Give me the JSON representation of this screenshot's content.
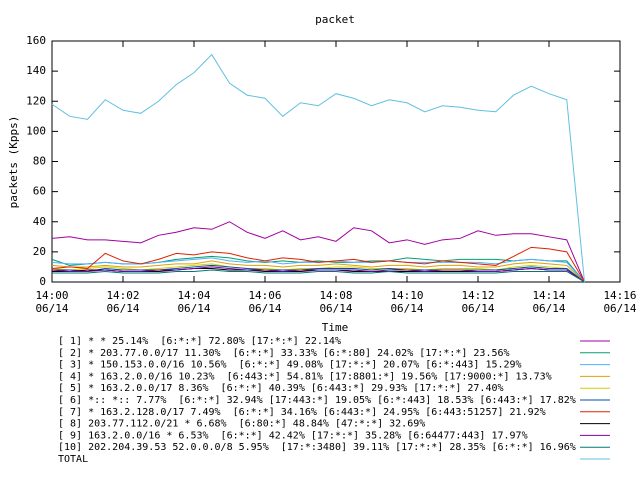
{
  "chart_data": {
    "type": "line",
    "title": "packet",
    "y_label": "packets (Kpps)",
    "x_label": "Time",
    "x": [
      "14:00",
      "14:00:30",
      "14:01",
      "14:01:30",
      "14:02",
      "14:02:30",
      "14:03",
      "14:03:30",
      "14:04",
      "14:04:30",
      "14:05",
      "14:05:30",
      "14:06",
      "14:06:30",
      "14:07",
      "14:07:30",
      "14:08",
      "14:08:30",
      "14:09",
      "14:09:30",
      "14:10",
      "14:10:30",
      "14:11",
      "14:11:30",
      "14:12",
      "14:12:30",
      "14:13",
      "14:13:30",
      "14:14",
      "14:14:30",
      "14:15"
    ],
    "xlim": [
      "14:00",
      "14:16"
    ],
    "xticks": [
      {
        "value": "14:00",
        "label": "14:00\n06/14"
      },
      {
        "value": "14:02",
        "label": "14:02\n06/14"
      },
      {
        "value": "14:04",
        "label": "14:04\n06/14"
      },
      {
        "value": "14:06",
        "label": "14:06\n06/14"
      },
      {
        "value": "14:08",
        "label": "14:08\n06/14"
      },
      {
        "value": "14:10",
        "label": "14:10\n06/14"
      },
      {
        "value": "14:12",
        "label": "14:12\n06/14"
      },
      {
        "value": "14:14",
        "label": "14:14\n06/14"
      },
      {
        "value": "14:16",
        "label": "14:16\n06/14"
      }
    ],
    "ylim": [
      0,
      160
    ],
    "yticks": [
      0,
      20,
      40,
      60,
      80,
      100,
      120,
      140,
      160
    ],
    "series": [
      {
        "name": "[ 1] * * 25.14%  [6:*:*] 72.80% [17:*:*] 22.14%",
        "color": "#a000a0",
        "values": [
          29,
          30,
          28,
          28,
          27,
          26,
          31,
          33,
          36,
          35,
          40,
          33,
          29,
          34,
          28,
          30,
          27,
          36,
          34,
          26,
          28,
          25,
          28,
          29,
          34,
          31,
          32,
          32,
          30,
          28,
          0
        ]
      },
      {
        "name": "[ 2] * 203.77.0.0/17 11.30%  [6:*:*] 33.33% [6:*:80] 24.02% [17:*:*] 23.56%",
        "color": "#00a070",
        "values": [
          15,
          11,
          12,
          13,
          12,
          12,
          13,
          15,
          16,
          17,
          16,
          14,
          13,
          14,
          13,
          14,
          13,
          13,
          14,
          14,
          16,
          15,
          14,
          15,
          15,
          15,
          14,
          15,
          14,
          14,
          0
        ]
      },
      {
        "name": "[ 3] * 150.153.0.0/16 10.56%  [6:*:*] 49.08% [17:*:*] 20.07% [6:*:443] 15.29%",
        "color": "#50b0ff",
        "values": [
          13,
          12,
          12,
          13,
          12,
          12,
          13,
          14,
          15,
          16,
          14,
          13,
          14,
          12,
          13,
          13,
          14,
          13,
          13,
          14,
          13,
          13,
          13,
          13,
          13,
          12,
          14,
          15,
          14,
          13,
          0
        ]
      },
      {
        "name": "[ 4] * 163.2.0.0/16 10.23%  [6:443:*] 54.81% [17:8801:*] 19.56% [17:9000:*] 13.73%",
        "color": "#e0a000",
        "values": [
          11,
          10,
          10,
          11,
          10,
          10,
          11,
          12,
          12,
          14,
          12,
          11,
          11,
          10,
          11,
          11,
          12,
          11,
          10,
          11,
          11,
          10,
          11,
          11,
          10,
          10,
          12,
          13,
          12,
          11,
          0
        ]
      },
      {
        "name": "[ 5] * 163.2.0.0/17 8.36%  [6:*:*] 40.39% [6:443:*] 29.93% [17:*:*] 27.40%",
        "color": "#d0d000",
        "values": [
          9,
          8,
          9,
          10,
          9,
          8,
          9,
          10,
          11,
          12,
          10,
          9,
          9,
          8,
          9,
          9,
          10,
          10,
          9,
          9,
          9,
          8,
          9,
          9,
          9,
          8,
          10,
          11,
          10,
          9,
          0
        ]
      },
      {
        "name": "[ 6] *:: *:: 7.77%  [6:*:*] 32.94% [17:443:*] 19.05% [6:*:443] 18.53% [6:443:*] 17.82%",
        "color": "#0050a0",
        "values": [
          8,
          8,
          7,
          9,
          8,
          8,
          8,
          9,
          10,
          11,
          10,
          9,
          8,
          8,
          8,
          9,
          9,
          9,
          8,
          9,
          8,
          8,
          8,
          8,
          8,
          8,
          9,
          10,
          9,
          9,
          0
        ]
      },
      {
        "name": "[ 7] * 163.2.128.0/17 7.49%  [6:*:*] 34.16% [6:443:*] 24.95% [6:443:51257] 21.92%",
        "color": "#e02000",
        "values": [
          9,
          10,
          9,
          19,
          14,
          12,
          15,
          19,
          18,
          20,
          19,
          16,
          14,
          16,
          15,
          13,
          14,
          15,
          13,
          14,
          13,
          12,
          14,
          13,
          12,
          11,
          17,
          23,
          22,
          20,
          0
        ]
      },
      {
        "name": "[ 8] 203.77.112.0/21 * 6.68%  [6:80:*] 48.84% [47:*:*] 32.69%",
        "color": "#000000",
        "values": [
          7,
          7,
          8,
          8,
          7,
          7,
          7,
          8,
          9,
          9,
          8,
          8,
          7,
          7,
          7,
          8,
          8,
          7,
          7,
          7,
          7,
          7,
          7,
          7,
          7,
          7,
          8,
          9,
          8,
          8,
          0
        ]
      },
      {
        "name": "[ 9] 163.2.0.0/16 * 6.53%  [6:*:*] 42.42% [17:*:*] 35.28% [6:64477:443] 17.97%",
        "color": "#8000a0",
        "values": [
          8,
          7,
          7,
          8,
          7,
          7,
          8,
          8,
          9,
          10,
          9,
          8,
          8,
          7,
          8,
          8,
          8,
          8,
          7,
          8,
          8,
          7,
          8,
          8,
          7,
          7,
          8,
          9,
          8,
          8,
          0
        ]
      },
      {
        "name": "[10] 202.204.39.53 52.0.0.0/8 5.95%  [17:*:3480] 39.11% [17:*:*] 28.35% [6:*:*] 16.96%",
        "color": "#007878",
        "values": [
          6,
          6,
          6,
          7,
          6,
          6,
          6,
          7,
          7,
          8,
          7,
          7,
          6,
          6,
          6,
          7,
          7,
          6,
          6,
          7,
          6,
          6,
          6,
          6,
          6,
          6,
          7,
          7,
          7,
          7,
          0
        ]
      },
      {
        "name": "TOTAL",
        "color": "#60c0e0",
        "values": [
          118,
          110,
          108,
          121,
          114,
          112,
          120,
          131,
          139,
          151,
          132,
          124,
          122,
          110,
          119,
          117,
          125,
          122,
          117,
          121,
          119,
          113,
          117,
          116,
          114,
          113,
          124,
          130,
          125,
          121,
          0
        ]
      }
    ]
  }
}
